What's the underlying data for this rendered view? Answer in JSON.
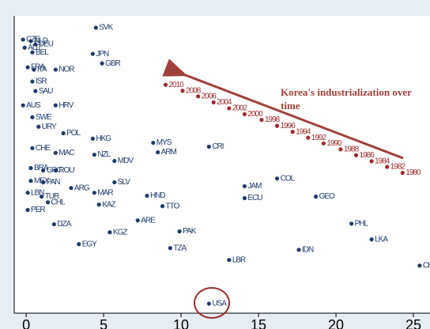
{
  "chart_data": {
    "type": "scatter",
    "annotation": "Korea's industrialization over time",
    "xlim": [
      -0.77,
      26.07
    ],
    "ylim": [
      0,
      100
    ],
    "xticks": [
      0,
      5,
      10,
      15,
      20,
      25
    ],
    "series": [
      {
        "color": "#1f3b6e",
        "labels": [
          "SVK",
          "CZE",
          "NLD",
          "DEU",
          "AUT",
          "BEL",
          "JPN",
          "GBR",
          "FRA",
          "ITA",
          "NOR",
          "ISR",
          "SAU",
          "AUS",
          "HRV",
          "SWE",
          "URY",
          "POL",
          "HKG",
          "CHE",
          "MAC",
          "NZL",
          "MDV",
          "MYS",
          "ARM",
          "CRI",
          "BRA",
          "GRC",
          "ROU",
          "MEX",
          "PAN",
          "ARG",
          "SLV",
          "MAR",
          "LBN",
          "TUR",
          "CHL",
          "KAZ",
          "HND",
          "TTO",
          "PER",
          "COL",
          "JAM",
          "ECU",
          "GEO",
          "DZA",
          "ARE",
          "KGZ",
          "PAK",
          "PHL",
          "LKA",
          "EGY",
          "TZA",
          "LBR",
          "IDN",
          "CHN",
          "USA"
        ],
        "x": [
          4.5,
          -0.2,
          0.3,
          0.6,
          -0.1,
          0.4,
          4.3,
          4.9,
          0.1,
          0.5,
          1.9,
          0.4,
          0.6,
          -0.2,
          1.9,
          0.4,
          0.8,
          2.4,
          4.3,
          0.4,
          1.9,
          4.4,
          5.7,
          8.2,
          8.5,
          11.8,
          0.3,
          1.1,
          1.9,
          0.3,
          1.1,
          2.9,
          5.7,
          4.4,
          0.1,
          1.0,
          1.4,
          4.7,
          7.8,
          8.8,
          0.1,
          16.2,
          14.1,
          14.1,
          18.7,
          1.8,
          7.2,
          5.4,
          9.9,
          21.0,
          22.3,
          3.4,
          9.3,
          13.1,
          17.6,
          25.4,
          11.8
        ],
        "y": [
          96.0,
          92.0,
          91.5,
          90.4,
          89.3,
          87.7,
          87.2,
          84.0,
          82.7,
          81.9,
          81.9,
          77.9,
          74.7,
          69.9,
          69.9,
          65.9,
          62.7,
          60.5,
          58.7,
          55.5,
          53.9,
          53.3,
          51.2,
          57.3,
          54.1,
          56.0,
          48.8,
          48.0,
          48.0,
          44.5,
          44.0,
          42.1,
          44.0,
          40.5,
          40.5,
          39.2,
          37.3,
          36.5,
          39.5,
          36.0,
          34.7,
          45.3,
          42.7,
          38.7,
          39.2,
          29.9,
          31.2,
          27.2,
          27.5,
          30.1,
          24.8,
          23.2,
          21.9,
          17.9,
          21.3,
          16.0,
          3.2
        ]
      },
      {
        "color": "#a32a2a",
        "labels": [
          "1980",
          "1982",
          "1984",
          "1986",
          "1988",
          "1990",
          "1992",
          "1994",
          "1996",
          "1998",
          "2000",
          "2002",
          "2004",
          "2006",
          "2008",
          "2010"
        ],
        "x": [
          24.3,
          23.3,
          22.3,
          21.3,
          20.3,
          19.2,
          18.2,
          17.2,
          16.2,
          15.2,
          14.1,
          13.1,
          12.1,
          11.1,
          10.1,
          9.0
        ],
        "y": [
          47.2,
          49.2,
          51.1,
          53.1,
          55.1,
          57.1,
          59.0,
          61.0,
          63.0,
          65.0,
          66.9,
          68.9,
          70.9,
          72.9,
          74.8,
          76.8
        ]
      }
    ]
  }
}
